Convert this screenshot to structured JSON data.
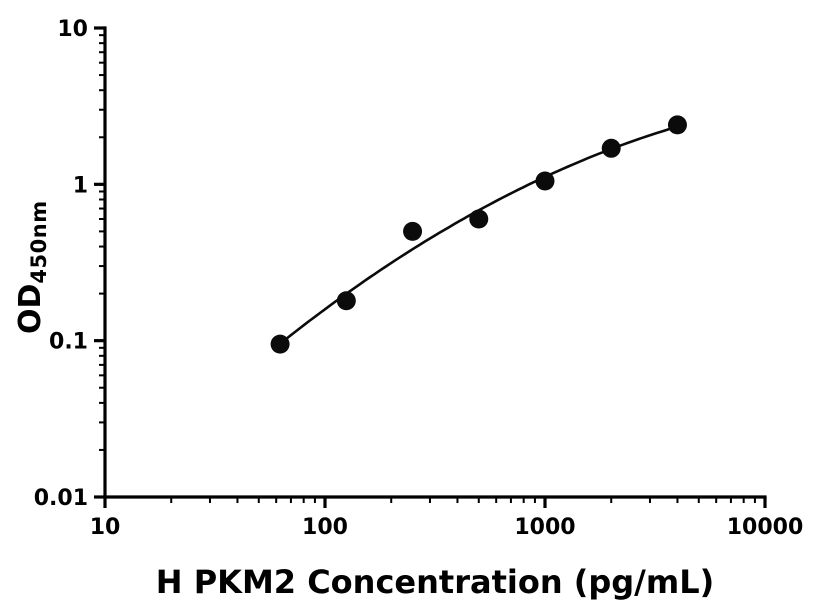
{
  "figure": {
    "title": "",
    "xlabel": "H PKM2 Concentration (pg/mL)",
    "ylabel_main": "OD",
    "ylabel_sub": "450nm",
    "background": "#ffffff"
  },
  "chart_data": {
    "type": "scatter",
    "title": "",
    "xlabel": "H PKM2 Concentration (pg/mL)",
    "ylabel": "OD450nm",
    "x_scale": "log",
    "y_scale": "log",
    "xlim": [
      10,
      10000
    ],
    "ylim": [
      0.01,
      10
    ],
    "grid": false,
    "legend": "none",
    "x_ticks": {
      "values": [
        10,
        100,
        1000,
        10000
      ],
      "labels": [
        "10",
        "100",
        "1000",
        "10000"
      ]
    },
    "y_ticks": {
      "values": [
        0.01,
        0.1,
        1,
        10
      ],
      "labels": [
        "0.01",
        "0.1",
        "1",
        "10"
      ]
    },
    "minor_ticks": true,
    "curve": "smooth fit through points (log-log)",
    "axis_color": "#000000",
    "marker_color": "#0b0b0b",
    "line_color": "#0b0b0b",
    "points": [
      {
        "x": 62.5,
        "y": 0.095
      },
      {
        "x": 125,
        "y": 0.18
      },
      {
        "x": 250,
        "y": 0.5
      },
      {
        "x": 500,
        "y": 0.6
      },
      {
        "x": 1000,
        "y": 1.05
      },
      {
        "x": 2000,
        "y": 1.7
      },
      {
        "x": 4000,
        "y": 2.4
      }
    ]
  }
}
